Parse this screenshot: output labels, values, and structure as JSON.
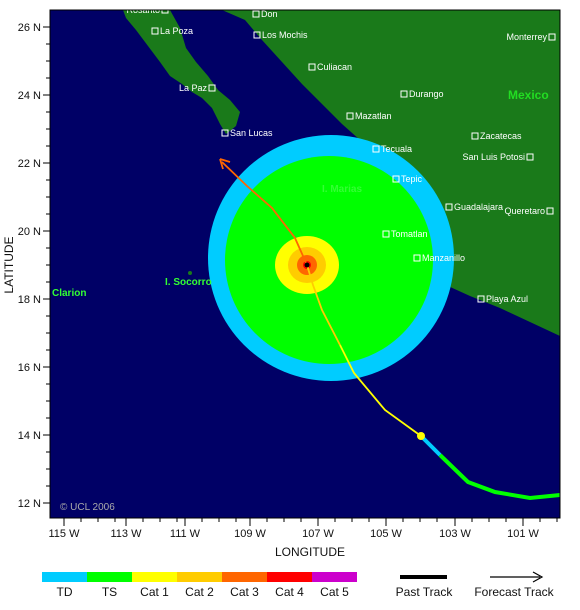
{
  "map": {
    "xlabel": "LONGITUDE",
    "ylabel": "LATITUDE",
    "copyright": "© UCL 2006",
    "country_label": "Mexico",
    "x_ticks": [
      "115 W",
      "113 W",
      "111 W",
      "109 W",
      "107 W",
      "105 W",
      "103 W",
      "101 W"
    ],
    "y_ticks": [
      "26 N",
      "24 N",
      "22 N",
      "20 N",
      "18 N",
      "16 N",
      "14 N",
      "12 N"
    ],
    "cities": [
      "Rosarito",
      "Don",
      "La Poza",
      "Los Mochis",
      "Culiacan",
      "Monterrey",
      "La Paz",
      "Durango",
      "Mazatlan",
      "San Lucas",
      "Zacatecas",
      "Tecuala",
      "San Luis Potosi",
      "Tepic",
      "Guadalajara",
      "Queretaro",
      "Tomatlan",
      "Manzanillo",
      "Playa Azul"
    ],
    "islands": [
      "I. Marias",
      "I. Socorro",
      "Clarion"
    ]
  },
  "legend": {
    "categories": [
      "TD",
      "TS",
      "Cat 1",
      "Cat 2",
      "Cat 3",
      "Cat 4",
      "Cat 5"
    ],
    "colors": [
      "#00ccff",
      "#00ff00",
      "#ffff00",
      "#ffcc00",
      "#ff6600",
      "#ff0000",
      "#cc00cc"
    ],
    "past_track": "Past Track",
    "forecast_track": "Forecast Track"
  }
}
